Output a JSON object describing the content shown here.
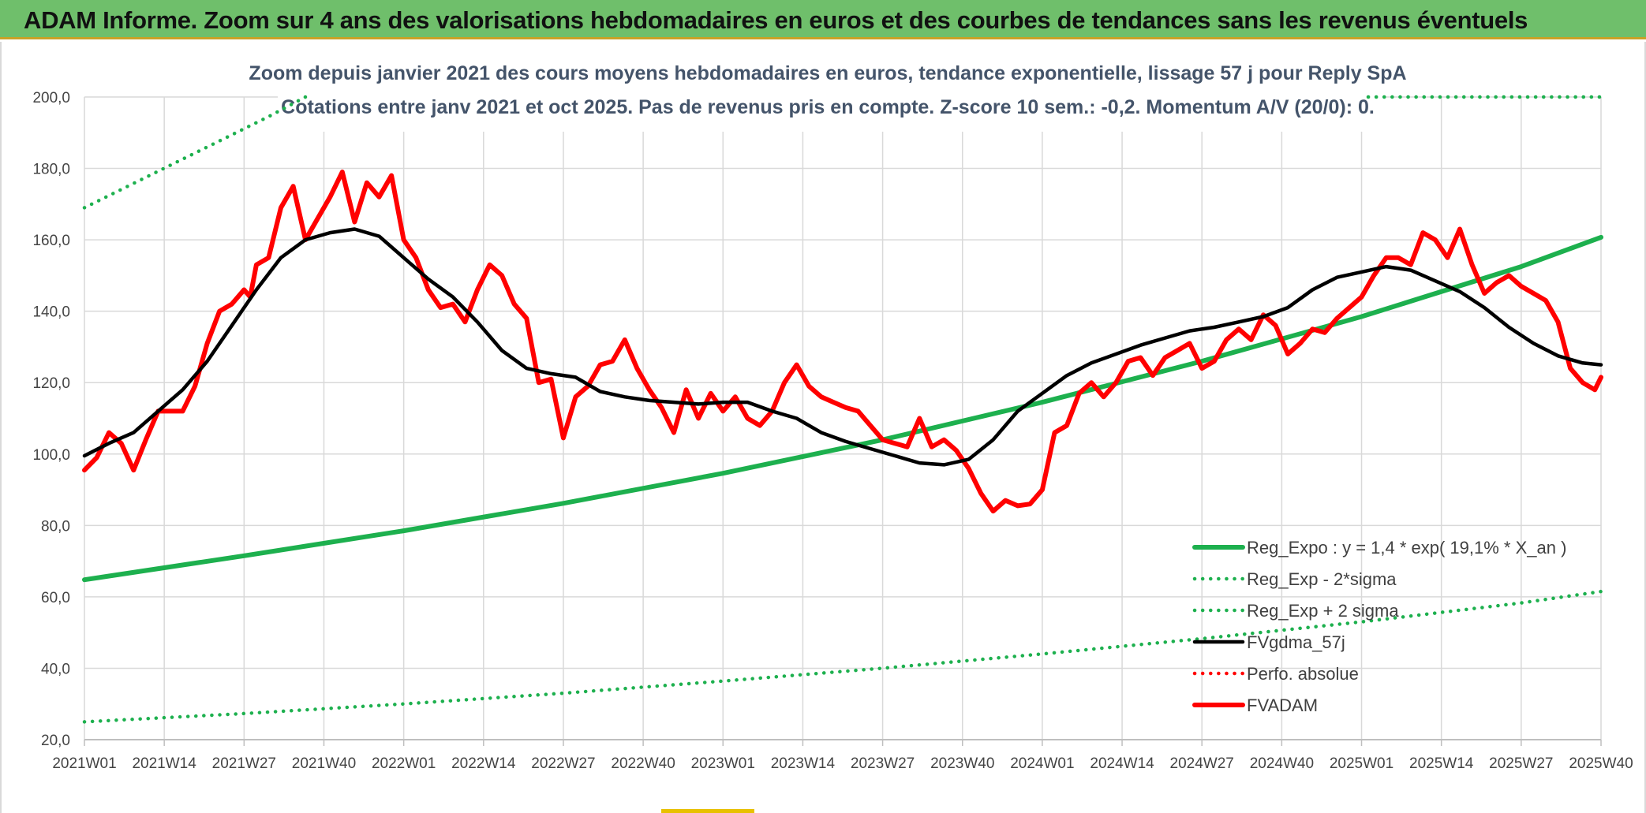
{
  "header": {
    "title": "ADAM Informe. Zoom sur 4 ans des valorisations hebdomadaires en euros et des courbes de tendances sans les revenus éventuels"
  },
  "chart_data": {
    "type": "line",
    "title": "Zoom depuis janvier 2021 des cours moyens hebdomadaires en euros, tendance exponentielle, lissage 57 j pour Reply SpA",
    "subtitle": "Cotations entre janv 2021 et oct 2025. Pas de revenus pris en compte. Z-score 10 sem.: -0,2. Momentum A/V (20/0): 0.",
    "ylim": [
      20,
      200
    ],
    "yticks": [
      200,
      180,
      160,
      140,
      120,
      100,
      80,
      60,
      40,
      20
    ],
    "ytick_labels": [
      "200,0",
      "180,0",
      "160,0",
      "140,0",
      "120,0",
      "100,0",
      "80,0",
      "60,0",
      "40,0",
      "20,0"
    ],
    "xlim": [
      0,
      247
    ],
    "xticks": [
      0,
      13,
      26,
      39,
      52,
      65,
      78,
      91,
      104,
      117,
      130,
      143,
      156,
      169,
      182,
      195,
      208,
      221,
      234,
      247
    ],
    "xtick_labels": [
      "2021W01",
      "2021W14",
      "2021W27",
      "2021W40",
      "2022W01",
      "2022W14",
      "2022W27",
      "2022W40",
      "2023W01",
      "2023W14",
      "2023W27",
      "2023W40",
      "2024W01",
      "2024W14",
      "2024W27",
      "2024W40",
      "2025W01",
      "2025W14",
      "2025W27",
      "2025W40"
    ],
    "grid": true,
    "legend_position": "bottom-right",
    "series": [
      {
        "name": "Reg_Expo : y = 1,4 * exp( 19,1% *  X_an )",
        "style": "solid-thick",
        "color": "#1db04e",
        "x": [
          0,
          26,
          52,
          78,
          104,
          130,
          156,
          182,
          208,
          234,
          247
        ],
        "values": [
          64.8,
          71.5,
          78.5,
          86.2,
          94.6,
          104.0,
          114.5,
          126.0,
          138.5,
          152.5,
          160.7
        ]
      },
      {
        "name": "Reg_Exp - 2*sigma",
        "style": "dotted",
        "color": "#1db04e",
        "x": [
          0,
          26,
          52,
          78,
          104,
          130,
          156,
          182,
          208,
          234,
          247
        ],
        "values": [
          25.0,
          27.3,
          30.0,
          33.0,
          36.4,
          40.0,
          44.0,
          48.3,
          53.0,
          58.3,
          61.5
        ]
      },
      {
        "name": "Reg_Exp + 2 sigma",
        "style": "dotted",
        "color": "#1db04e",
        "x": [
          0,
          10,
          20,
          30,
          36
        ],
        "values": [
          169.0,
          177.5,
          186.0,
          194.5,
          200.0
        ]
      },
      {
        "name": "FVgdma_57j",
        "style": "solid",
        "color": "#000000",
        "x": [
          0,
          4,
          8,
          12,
          16,
          20,
          24,
          28,
          32,
          36,
          40,
          44,
          48,
          52,
          56,
          60,
          64,
          68,
          72,
          76,
          80,
          84,
          88,
          92,
          96,
          100,
          104,
          108,
          112,
          116,
          120,
          124,
          128,
          132,
          136,
          140,
          144,
          148,
          152,
          156,
          160,
          164,
          168,
          172,
          176,
          180,
          184,
          188,
          192,
          196,
          200,
          204,
          208,
          212,
          216,
          220,
          224,
          228,
          232,
          236,
          240,
          244,
          247
        ],
        "values": [
          99.5,
          103,
          106,
          112,
          118,
          126,
          136,
          146,
          155,
          160,
          162,
          163,
          161,
          155,
          149,
          144,
          137,
          129,
          124,
          122.5,
          121.5,
          117.5,
          116,
          115,
          114.5,
          114,
          114.5,
          114.5,
          112,
          110,
          106,
          103.5,
          101.5,
          99.5,
          97.5,
          97,
          98.5,
          104,
          112,
          117,
          122,
          125.5,
          128,
          130.5,
          132.5,
          134.5,
          135.5,
          137,
          138.5,
          141,
          146,
          149.5,
          151,
          152.5,
          151.5,
          148.5,
          145.5,
          141,
          135.5,
          131,
          127.5,
          125.5,
          125
        ]
      },
      {
        "name": "Perfo. absolue",
        "style": "dotted",
        "color": "#ff0000",
        "x": [],
        "values": []
      },
      {
        "name": "FVADAM",
        "style": "solid-thick",
        "color": "#ff0000",
        "x": [
          0,
          2,
          4,
          6,
          8,
          10,
          12,
          14,
          16,
          18,
          20,
          22,
          24,
          26,
          27,
          28,
          30,
          32,
          34,
          36,
          38,
          40,
          42,
          44,
          46,
          48,
          50,
          52,
          54,
          56,
          58,
          60,
          62,
          64,
          66,
          68,
          70,
          72,
          74,
          76,
          78,
          80,
          82,
          84,
          86,
          88,
          90,
          92,
          94,
          96,
          98,
          100,
          102,
          104,
          106,
          108,
          110,
          112,
          114,
          116,
          118,
          120,
          122,
          124,
          126,
          128,
          130,
          132,
          134,
          136,
          138,
          140,
          142,
          144,
          146,
          148,
          150,
          152,
          154,
          156,
          158,
          160,
          162,
          164,
          166,
          168,
          170,
          172,
          174,
          176,
          178,
          180,
          182,
          184,
          186,
          188,
          190,
          192,
          194,
          196,
          198,
          200,
          202,
          204,
          206,
          208,
          210,
          212,
          214,
          216,
          218,
          220,
          222,
          224,
          226,
          228,
          230,
          232,
          234,
          236,
          238,
          240,
          242,
          244,
          246,
          247
        ],
        "values": [
          95.5,
          99,
          106,
          103,
          95.5,
          104,
          112,
          112,
          112,
          119,
          131,
          140,
          142,
          146,
          144,
          153,
          155,
          169,
          175,
          160,
          166,
          172,
          179,
          165,
          176,
          172,
          178,
          160,
          155,
          146,
          141,
          142,
          137,
          146,
          153,
          150,
          142,
          138,
          120,
          121,
          104.5,
          116,
          119,
          125,
          126,
          132,
          124,
          118,
          113,
          106,
          118,
          110,
          117,
          112,
          116,
          110,
          108,
          112,
          120,
          125,
          119,
          116,
          114.5,
          113,
          112,
          108,
          104,
          103,
          102,
          110,
          102,
          104,
          101,
          96,
          89,
          84,
          87,
          85.5,
          86,
          90,
          106,
          108,
          117,
          120,
          116,
          120,
          126,
          127,
          122,
          127,
          129,
          131,
          124,
          126,
          132,
          135,
          132,
          139,
          136,
          128,
          131,
          135,
          134,
          138,
          141,
          144,
          150,
          155,
          155,
          153,
          162,
          160,
          155,
          163,
          153,
          145,
          148,
          150,
          147,
          145,
          143,
          137,
          124,
          120,
          118,
          121.5
        ]
      }
    ]
  }
}
